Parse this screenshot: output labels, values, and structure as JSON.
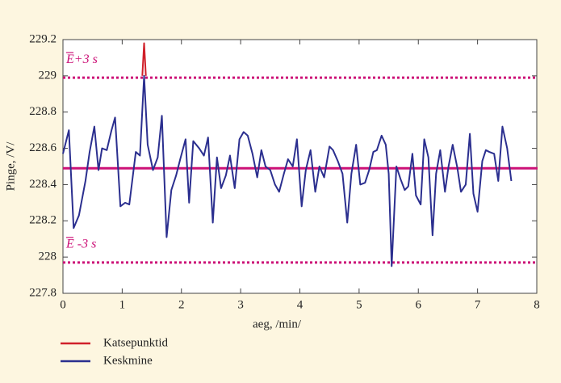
{
  "chart_data": {
    "type": "line",
    "xlabel": "aeg, /min/",
    "ylabel": "Pinge, /V/",
    "xlim": [
      0,
      8
    ],
    "ylim": [
      227.8,
      229.2
    ],
    "xticks": [
      0,
      1,
      2,
      3,
      4,
      5,
      6,
      7,
      8
    ],
    "yticks": [
      227.8,
      228,
      228.2,
      228.4,
      228.6,
      228.8,
      229,
      229.2
    ],
    "series": [
      {
        "name": "Katsepunktid",
        "color": "#d0202a",
        "x": [
          1.34,
          1.37,
          1.4
        ],
        "values": [
          229.0,
          229.18,
          229.0
        ]
      },
      {
        "name": "Keskmine",
        "color": "#2b2f8f",
        "x": [
          0,
          0.1,
          0.18,
          0.27,
          0.38,
          0.45,
          0.53,
          0.6,
          0.66,
          0.74,
          0.82,
          0.88,
          0.97,
          1.05,
          1.12,
          1.23,
          1.3,
          1.37,
          1.43,
          1.52,
          1.6,
          1.67,
          1.75,
          1.83,
          1.91,
          1.98,
          2.07,
          2.13,
          2.2,
          2.3,
          2.38,
          2.45,
          2.53,
          2.6,
          2.67,
          2.75,
          2.82,
          2.9,
          2.98,
          3.05,
          3.12,
          3.2,
          3.28,
          3.35,
          3.42,
          3.5,
          3.58,
          3.65,
          3.73,
          3.8,
          3.88,
          3.95,
          4.03,
          4.1,
          4.18,
          4.26,
          4.33,
          4.41,
          4.5,
          4.56,
          4.64,
          4.72,
          4.8,
          4.87,
          4.95,
          5.02,
          5.1,
          5.17,
          5.24,
          5.3,
          5.38,
          5.45,
          5.5,
          5.55,
          5.63,
          5.7,
          5.77,
          5.83,
          5.9,
          5.96,
          6.04,
          6.1,
          6.17,
          6.24,
          6.3,
          6.37,
          6.45,
          6.51,
          6.58,
          6.66,
          6.72,
          6.8,
          6.87,
          6.93,
          7.0,
          7.08,
          7.14,
          7.2,
          7.28,
          7.35,
          7.42,
          7.5,
          7.57
        ],
        "values": [
          228.57,
          228.7,
          228.16,
          228.23,
          228.42,
          228.58,
          228.72,
          228.48,
          228.6,
          228.59,
          228.7,
          228.77,
          228.28,
          228.3,
          228.29,
          228.58,
          228.56,
          229.0,
          228.62,
          228.48,
          228.55,
          228.78,
          228.11,
          228.37,
          228.45,
          228.54,
          228.65,
          228.3,
          228.64,
          228.6,
          228.56,
          228.66,
          228.19,
          228.55,
          228.38,
          228.45,
          228.56,
          228.38,
          228.65,
          228.69,
          228.67,
          228.57,
          228.44,
          228.59,
          228.5,
          228.48,
          228.4,
          228.36,
          228.46,
          228.54,
          228.5,
          228.65,
          228.28,
          228.48,
          228.59,
          228.36,
          228.5,
          228.44,
          228.61,
          228.59,
          228.53,
          228.46,
          228.19,
          228.46,
          228.62,
          228.4,
          228.41,
          228.48,
          228.58,
          228.59,
          228.67,
          228.62,
          228.46,
          227.95,
          228.5,
          228.43,
          228.37,
          228.39,
          228.57,
          228.34,
          228.29,
          228.65,
          228.55,
          228.12,
          228.46,
          228.59,
          228.36,
          228.5,
          228.62,
          228.49,
          228.36,
          228.4,
          228.68,
          228.35,
          228.25,
          228.53,
          228.59,
          228.58,
          228.57,
          228.42,
          228.72,
          228.6,
          228.42
        ]
      }
    ],
    "reference_lines": [
      {
        "value": 228.49,
        "color": "#cc1177",
        "style": "solid"
      },
      {
        "value": 228.99,
        "color": "#cc1177",
        "style": "dotted",
        "label": "E+3 s"
      },
      {
        "value": 227.97,
        "color": "#cc1177",
        "style": "dotted",
        "label": "E -3 s"
      }
    ]
  }
}
